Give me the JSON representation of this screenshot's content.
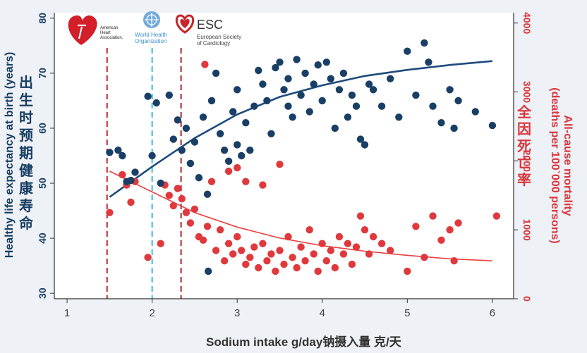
{
  "chart_data": {
    "type": "scatter",
    "xlabel": "Sodium intake g/day",
    "xlabel_cn": "钠摄入量 克/天",
    "ylabel_left": "Healthy life expectancy at birth (years)",
    "ylabel_left_cn": "出生时预期健康寿命",
    "ylabel_right": "All-cause mortality",
    "ylabel_right_sub": "(deaths per 100`000 persons)",
    "ylabel_right_cn": "全因死亡率",
    "x_ticks": [
      "1",
      "2",
      "3",
      "4",
      "5",
      "6"
    ],
    "y_left_ticks": [
      "30",
      "40",
      "50",
      "60",
      "70",
      "80"
    ],
    "y_right_ticks": [
      "0",
      "1000",
      "2000",
      "3000",
      "4000"
    ],
    "xlim": [
      0.85,
      6.25
    ],
    "ylim_left": [
      29,
      81
    ],
    "ylim_right": [
      0,
      4150
    ],
    "reference_lines": [
      {
        "x": 1.47,
        "color": "#c0262d",
        "style": "dashed"
      },
      {
        "x": 2.0,
        "color": "#3cbcd8",
        "style": "dashed"
      },
      {
        "x": 2.34,
        "color": "#a3282c",
        "style": "dashed"
      }
    ],
    "series": [
      {
        "axis": "left",
        "color": "#1a3f66",
        "points": [
          [
            1.5,
            55.6
          ],
          [
            1.6,
            56.0
          ],
          [
            1.65,
            55.0
          ],
          [
            1.7,
            50.3
          ],
          [
            1.75,
            50.5
          ],
          [
            1.8,
            52.0
          ],
          [
            1.95,
            65.8
          ],
          [
            2.0,
            55.0
          ],
          [
            2.05,
            64.6
          ],
          [
            2.1,
            50.0
          ],
          [
            2.2,
            66.0
          ],
          [
            2.25,
            58.0
          ],
          [
            2.3,
            61.5
          ],
          [
            2.35,
            56.0
          ],
          [
            2.4,
            60.0
          ],
          [
            2.45,
            53.6
          ],
          [
            2.5,
            57.5
          ],
          [
            2.55,
            51.0
          ],
          [
            2.6,
            62.0
          ],
          [
            2.65,
            48.0
          ],
          [
            2.7,
            65.0
          ],
          [
            2.75,
            70.0
          ],
          [
            2.8,
            59.0
          ],
          [
            2.85,
            56.0
          ],
          [
            2.9,
            54.0
          ],
          [
            2.95,
            63.0
          ],
          [
            3.0,
            67.0
          ],
          [
            3.05,
            55.0
          ],
          [
            3.1,
            61.0
          ],
          [
            3.15,
            56.0
          ],
          [
            3.2,
            64.0
          ],
          [
            3.25,
            70.5
          ],
          [
            3.3,
            68.0
          ],
          [
            3.35,
            65.0
          ],
          [
            3.4,
            59.0
          ],
          [
            3.45,
            71.0
          ],
          [
            3.5,
            72.0
          ],
          [
            3.55,
            67.0
          ],
          [
            3.6,
            69.0
          ],
          [
            3.65,
            62.0
          ],
          [
            3.7,
            72.5
          ],
          [
            3.75,
            66.0
          ],
          [
            3.8,
            70.0
          ],
          [
            3.85,
            63.0
          ],
          [
            3.9,
            68.0
          ],
          [
            3.95,
            71.5
          ],
          [
            4.0,
            65.0
          ],
          [
            4.05,
            72.0
          ],
          [
            4.1,
            69.0
          ],
          [
            4.15,
            60.0
          ],
          [
            4.2,
            67.0
          ],
          [
            4.25,
            70.0
          ],
          [
            4.3,
            62.0
          ],
          [
            4.35,
            66.0
          ],
          [
            4.4,
            64.0
          ],
          [
            4.45,
            58.0
          ],
          [
            4.5,
            57.0
          ],
          [
            4.55,
            68.0
          ],
          [
            4.6,
            67.0
          ],
          [
            4.7,
            64.0
          ],
          [
            4.8,
            69.0
          ],
          [
            4.9,
            62.0
          ],
          [
            5.0,
            74.0
          ],
          [
            5.1,
            66.0
          ],
          [
            5.2,
            75.5
          ],
          [
            5.25,
            72.0
          ],
          [
            5.3,
            64.0
          ],
          [
            5.4,
            61.0
          ],
          [
            5.5,
            67.0
          ],
          [
            5.55,
            60.0
          ],
          [
            5.6,
            65.0
          ],
          [
            5.8,
            63.0
          ],
          [
            6.0,
            60.5
          ],
          [
            2.66,
            34.0
          ],
          [
            3.0,
            57.0
          ],
          [
            3.6,
            64.0
          ]
        ],
        "trend": [
          [
            1.5,
            47.5
          ],
          [
            2.0,
            53.0
          ],
          [
            2.5,
            58.2
          ],
          [
            3.0,
            62.5
          ],
          [
            3.5,
            65.7
          ],
          [
            4.0,
            67.8
          ],
          [
            4.5,
            69.5
          ],
          [
            5.0,
            70.6
          ],
          [
            5.5,
            71.5
          ],
          [
            6.0,
            72.2
          ]
        ]
      },
      {
        "axis": "right",
        "color": "#e0393d",
        "points": [
          [
            1.5,
            1250
          ],
          [
            1.65,
            1800
          ],
          [
            1.7,
            1650
          ],
          [
            1.75,
            1400
          ],
          [
            1.8,
            1700
          ],
          [
            1.95,
            600
          ],
          [
            2.1,
            800
          ],
          [
            2.15,
            1650
          ],
          [
            2.2,
            1500
          ],
          [
            2.25,
            1350
          ],
          [
            2.3,
            1600
          ],
          [
            2.35,
            1450
          ],
          [
            2.4,
            1250
          ],
          [
            2.45,
            1100
          ],
          [
            2.5,
            1300
          ],
          [
            2.55,
            900
          ],
          [
            2.6,
            850
          ],
          [
            2.62,
            3400
          ],
          [
            2.65,
            1050
          ],
          [
            2.7,
            1700
          ],
          [
            2.75,
            700
          ],
          [
            2.8,
            1000
          ],
          [
            2.85,
            550
          ],
          [
            2.9,
            800
          ],
          [
            2.95,
            650
          ],
          [
            3.0,
            900
          ],
          [
            3.05,
            700
          ],
          [
            3.1,
            500
          ],
          [
            3.15,
            600
          ],
          [
            3.2,
            750
          ],
          [
            3.25,
            450
          ],
          [
            3.3,
            800
          ],
          [
            3.35,
            550
          ],
          [
            3.4,
            650
          ],
          [
            3.45,
            400
          ],
          [
            3.5,
            700
          ],
          [
            3.55,
            500
          ],
          [
            3.6,
            900
          ],
          [
            3.65,
            600
          ],
          [
            3.7,
            450
          ],
          [
            3.75,
            750
          ],
          [
            3.8,
            550
          ],
          [
            3.85,
            1000
          ],
          [
            3.9,
            650
          ],
          [
            3.95,
            400
          ],
          [
            4.0,
            800
          ],
          [
            4.05,
            550
          ],
          [
            4.1,
            700
          ],
          [
            4.15,
            450
          ],
          [
            4.2,
            900
          ],
          [
            4.25,
            650
          ],
          [
            4.3,
            800
          ],
          [
            4.35,
            500
          ],
          [
            4.4,
            750
          ],
          [
            4.45,
            1200
          ],
          [
            4.5,
            1000
          ],
          [
            4.55,
            650
          ],
          [
            4.6,
            900
          ],
          [
            4.7,
            800
          ],
          [
            4.8,
            700
          ],
          [
            5.0,
            400
          ],
          [
            5.1,
            1050
          ],
          [
            5.2,
            600
          ],
          [
            5.3,
            1200
          ],
          [
            5.4,
            850
          ],
          [
            5.5,
            1000
          ],
          [
            5.55,
            550
          ],
          [
            5.6,
            1100
          ],
          [
            6.05,
            1200
          ],
          [
            3.5,
            1950
          ],
          [
            3.3,
            1650
          ],
          [
            3.0,
            1900
          ],
          [
            2.9,
            1850
          ],
          [
            3.1,
            1700
          ]
        ],
        "trend": [
          [
            1.5,
            1850
          ],
          [
            2.0,
            1550
          ],
          [
            2.5,
            1250
          ],
          [
            3.0,
            1040
          ],
          [
            3.5,
            880
          ],
          [
            4.0,
            770
          ],
          [
            4.5,
            690
          ],
          [
            5.0,
            630
          ],
          [
            5.5,
            580
          ],
          [
            6.0,
            550
          ]
        ]
      }
    ]
  },
  "logos": {
    "aha": {
      "line1": "American",
      "line2": "Heart",
      "line3": "Association."
    },
    "who": {
      "line1": "World Health",
      "line2": "Organization"
    },
    "esc": {
      "title": "ESC",
      "line1": "European Society",
      "line2": "of Cardiology"
    }
  },
  "colors": {
    "blue": "#1a3f66",
    "red": "#e0393d",
    "trend_blue": "#1e4b7c",
    "trend_red": "#e8403e"
  }
}
